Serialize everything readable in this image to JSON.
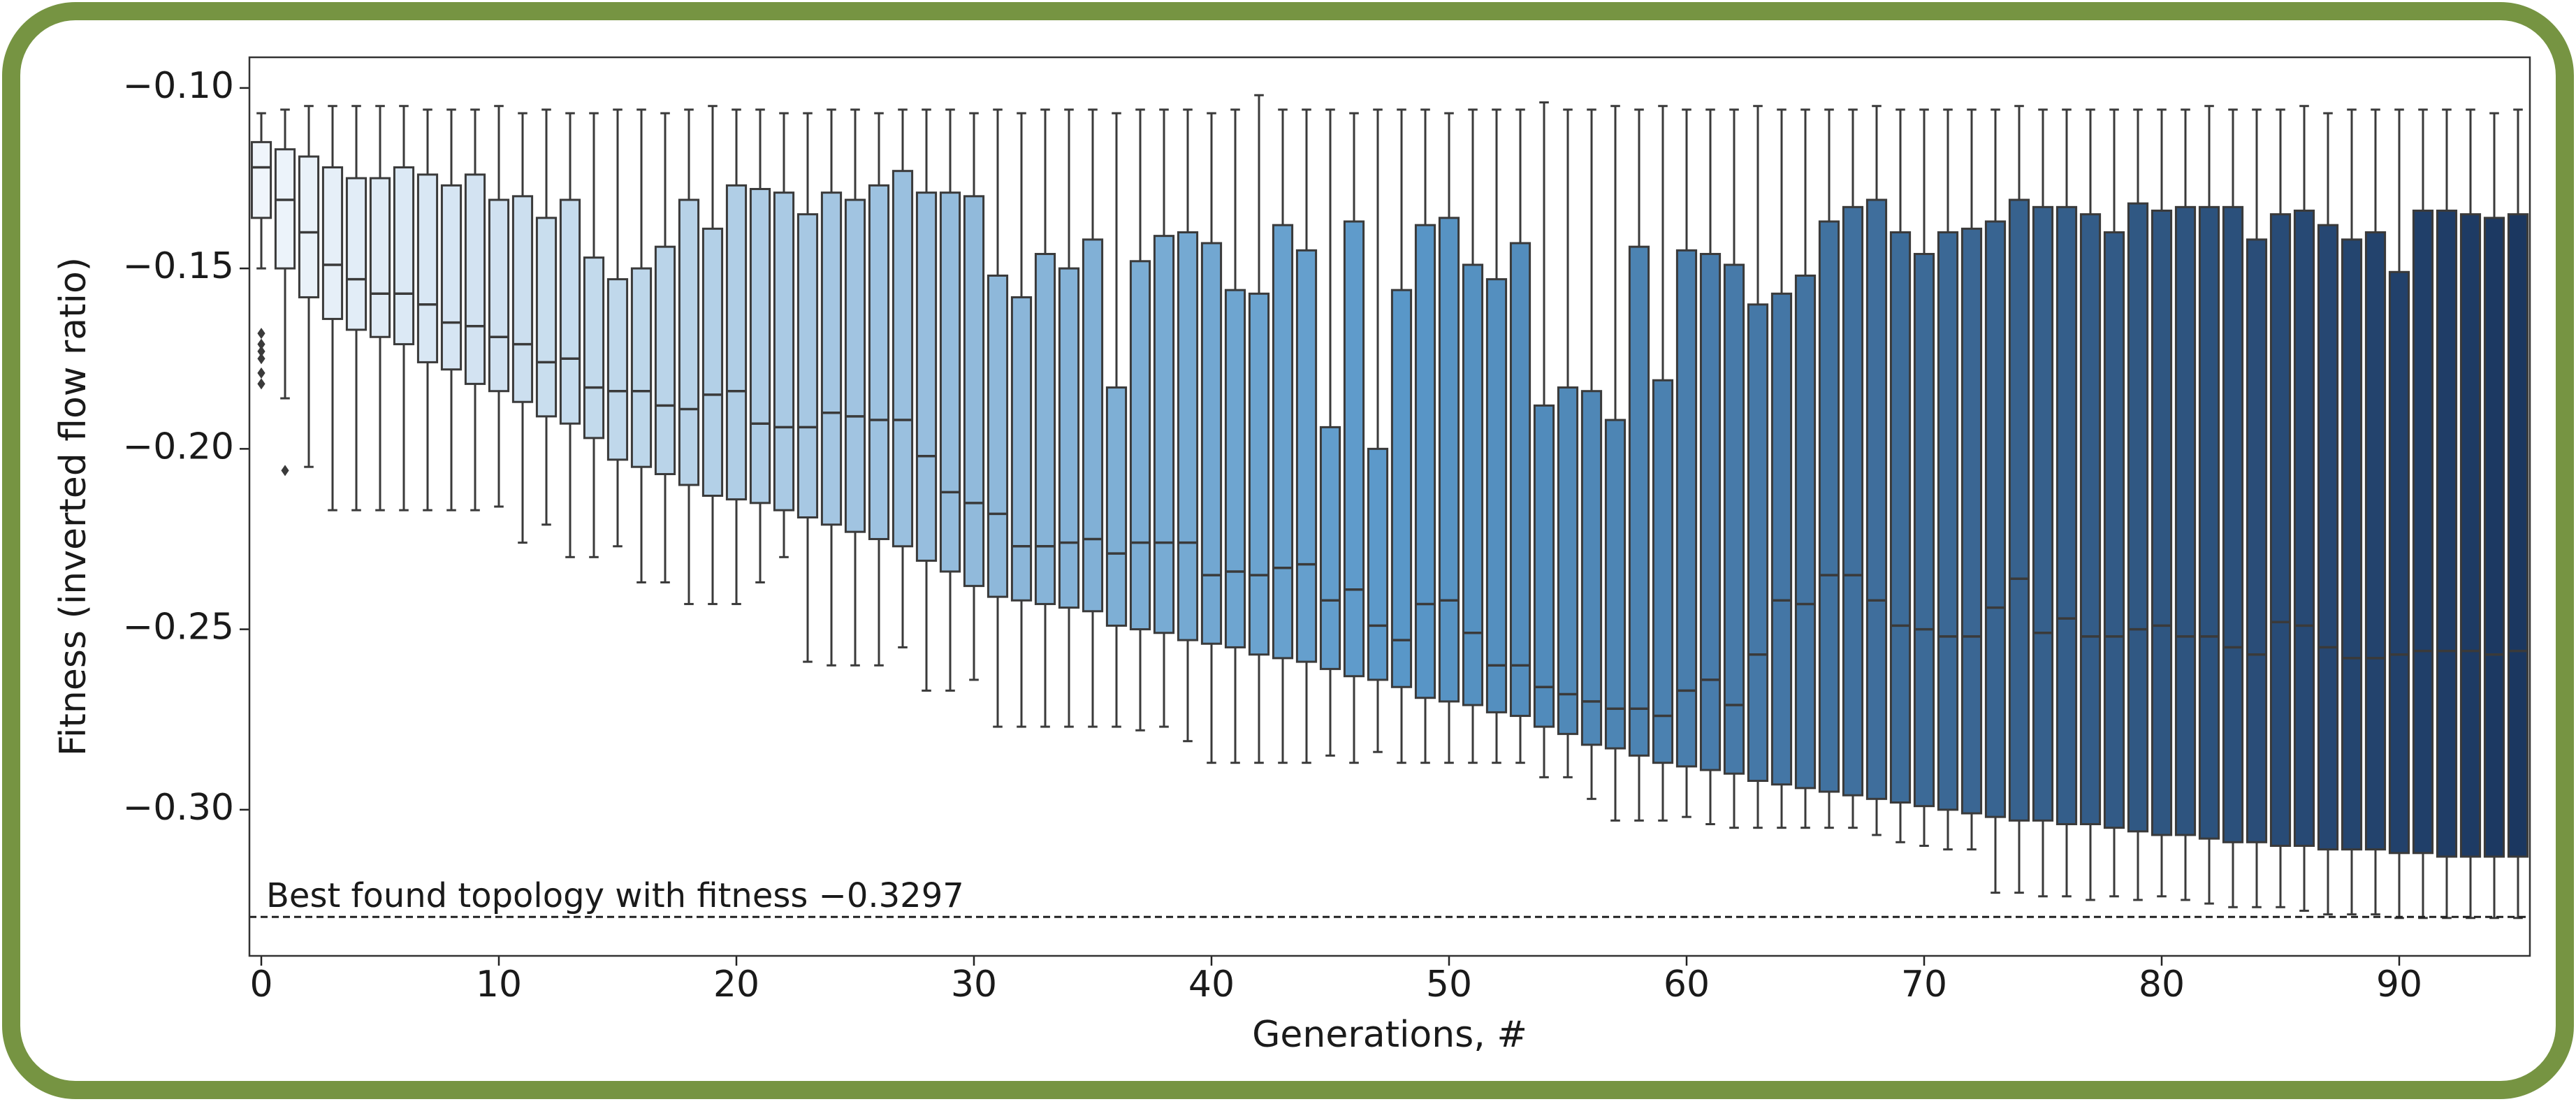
{
  "chart_data": {
    "type": "box",
    "x_label": "Generations, #",
    "y_label": "Fitness (inverted flow ratio)",
    "x": [
      0,
      1,
      2,
      3,
      4,
      5,
      6,
      7,
      8,
      9,
      10,
      11,
      12,
      13,
      14,
      15,
      16,
      17,
      18,
      19,
      20,
      21,
      22,
      23,
      24,
      25,
      26,
      27,
      28,
      29,
      30,
      31,
      32,
      33,
      34,
      35,
      36,
      37,
      38,
      39,
      40,
      41,
      42,
      43,
      44,
      45,
      46,
      47,
      48,
      49,
      50,
      51,
      52,
      53,
      54,
      55,
      56,
      57,
      58,
      59,
      60,
      61,
      62,
      63,
      64,
      65,
      66,
      67,
      68,
      69,
      70,
      71,
      72,
      73,
      74,
      75,
      76,
      77,
      78,
      79,
      80,
      81,
      82,
      83,
      84,
      85,
      86,
      87,
      88,
      89,
      90,
      91,
      92,
      93,
      94,
      95
    ],
    "whisker_high": [
      -0.107,
      -0.106,
      -0.105,
      -0.105,
      -0.105,
      -0.105,
      -0.105,
      -0.106,
      -0.106,
      -0.106,
      -0.105,
      -0.107,
      -0.106,
      -0.107,
      -0.107,
      -0.106,
      -0.106,
      -0.107,
      -0.106,
      -0.105,
      -0.106,
      -0.106,
      -0.107,
      -0.107,
      -0.106,
      -0.106,
      -0.107,
      -0.106,
      -0.106,
      -0.106,
      -0.107,
      -0.106,
      -0.107,
      -0.106,
      -0.106,
      -0.106,
      -0.107,
      -0.106,
      -0.106,
      -0.106,
      -0.107,
      -0.106,
      -0.102,
      -0.106,
      -0.106,
      -0.106,
      -0.107,
      -0.106,
      -0.106,
      -0.106,
      -0.107,
      -0.106,
      -0.106,
      -0.106,
      -0.104,
      -0.106,
      -0.106,
      -0.105,
      -0.106,
      -0.105,
      -0.106,
      -0.106,
      -0.106,
      -0.105,
      -0.106,
      -0.106,
      -0.106,
      -0.106,
      -0.105,
      -0.106,
      -0.106,
      -0.106,
      -0.106,
      -0.106,
      -0.105,
      -0.106,
      -0.106,
      -0.106,
      -0.106,
      -0.106,
      -0.106,
      -0.106,
      -0.105,
      -0.106,
      -0.106,
      -0.106,
      -0.105,
      -0.107,
      -0.106,
      -0.106,
      -0.106,
      -0.106,
      -0.106,
      -0.106,
      -0.107,
      -0.106
    ],
    "q3": [
      -0.115,
      -0.117,
      -0.119,
      -0.122,
      -0.125,
      -0.125,
      -0.122,
      -0.124,
      -0.127,
      -0.124,
      -0.131,
      -0.13,
      -0.136,
      -0.131,
      -0.147,
      -0.153,
      -0.15,
      -0.144,
      -0.131,
      -0.139,
      -0.127,
      -0.128,
      -0.129,
      -0.135,
      -0.129,
      -0.131,
      -0.127,
      -0.123,
      -0.129,
      -0.129,
      -0.13,
      -0.152,
      -0.158,
      -0.146,
      -0.15,
      -0.142,
      -0.183,
      -0.148,
      -0.141,
      -0.14,
      -0.143,
      -0.156,
      -0.157,
      -0.138,
      -0.145,
      -0.194,
      -0.137,
      -0.2,
      -0.156,
      -0.138,
      -0.136,
      -0.149,
      -0.153,
      -0.143,
      -0.188,
      -0.183,
      -0.184,
      -0.192,
      -0.144,
      -0.181,
      -0.145,
      -0.146,
      -0.149,
      -0.16,
      -0.157,
      -0.152,
      -0.137,
      -0.133,
      -0.131,
      -0.14,
      -0.146,
      -0.14,
      -0.139,
      -0.137,
      -0.131,
      -0.133,
      -0.133,
      -0.135,
      -0.14,
      -0.132,
      -0.134,
      -0.133,
      -0.133,
      -0.133,
      -0.142,
      -0.135,
      -0.134,
      -0.138,
      -0.142,
      -0.14,
      -0.151,
      -0.134,
      -0.134,
      -0.135,
      -0.136,
      -0.135
    ],
    "median": [
      -0.122,
      -0.131,
      -0.14,
      -0.149,
      -0.153,
      -0.157,
      -0.157,
      -0.16,
      -0.165,
      -0.166,
      -0.169,
      -0.171,
      -0.176,
      -0.175,
      -0.183,
      -0.184,
      -0.184,
      -0.188,
      -0.189,
      -0.185,
      -0.184,
      -0.193,
      -0.194,
      -0.194,
      -0.19,
      -0.191,
      -0.192,
      -0.192,
      -0.202,
      -0.212,
      -0.215,
      -0.218,
      -0.227,
      -0.227,
      -0.226,
      -0.225,
      -0.229,
      -0.226,
      -0.226,
      -0.226,
      -0.235,
      -0.234,
      -0.235,
      -0.233,
      -0.232,
      -0.242,
      -0.239,
      -0.249,
      -0.253,
      -0.243,
      -0.242,
      -0.251,
      -0.26,
      -0.26,
      -0.266,
      -0.268,
      -0.27,
      -0.272,
      -0.272,
      -0.274,
      -0.267,
      -0.264,
      -0.271,
      -0.257,
      -0.242,
      -0.243,
      -0.235,
      -0.235,
      -0.242,
      -0.249,
      -0.25,
      -0.252,
      -0.252,
      -0.244,
      -0.236,
      -0.251,
      -0.247,
      -0.252,
      -0.252,
      -0.25,
      -0.249,
      -0.252,
      -0.252,
      -0.255,
      -0.257,
      -0.248,
      -0.249,
      -0.255,
      -0.258,
      -0.258,
      -0.257,
      -0.256,
      -0.256,
      -0.256,
      -0.257,
      -0.256
    ],
    "q1": [
      -0.136,
      -0.15,
      -0.158,
      -0.164,
      -0.167,
      -0.169,
      -0.171,
      -0.176,
      -0.178,
      -0.182,
      -0.184,
      -0.187,
      -0.191,
      -0.193,
      -0.197,
      -0.203,
      -0.205,
      -0.207,
      -0.21,
      -0.213,
      -0.214,
      -0.215,
      -0.217,
      -0.219,
      -0.221,
      -0.223,
      -0.225,
      -0.227,
      -0.231,
      -0.234,
      -0.238,
      -0.241,
      -0.242,
      -0.243,
      -0.244,
      -0.245,
      -0.249,
      -0.25,
      -0.251,
      -0.253,
      -0.254,
      -0.255,
      -0.257,
      -0.258,
      -0.259,
      -0.261,
      -0.263,
      -0.264,
      -0.266,
      -0.269,
      -0.27,
      -0.271,
      -0.273,
      -0.274,
      -0.277,
      -0.279,
      -0.282,
      -0.283,
      -0.285,
      -0.287,
      -0.288,
      -0.289,
      -0.29,
      -0.292,
      -0.293,
      -0.294,
      -0.295,
      -0.296,
      -0.297,
      -0.298,
      -0.299,
      -0.3,
      -0.301,
      -0.302,
      -0.303,
      -0.303,
      -0.304,
      -0.304,
      -0.305,
      -0.306,
      -0.307,
      -0.307,
      -0.308,
      -0.309,
      -0.309,
      -0.31,
      -0.31,
      -0.311,
      -0.311,
      -0.311,
      -0.312,
      -0.312,
      -0.313,
      -0.313,
      -0.313,
      -0.313
    ],
    "whisker_low": [
      -0.15,
      -0.186,
      -0.205,
      -0.217,
      -0.217,
      -0.217,
      -0.217,
      -0.217,
      -0.217,
      -0.217,
      -0.216,
      -0.226,
      -0.221,
      -0.23,
      -0.23,
      -0.227,
      -0.237,
      -0.237,
      -0.243,
      -0.243,
      -0.243,
      -0.237,
      -0.23,
      -0.259,
      -0.26,
      -0.26,
      -0.26,
      -0.255,
      -0.267,
      -0.267,
      -0.264,
      -0.277,
      -0.277,
      -0.277,
      -0.277,
      -0.277,
      -0.277,
      -0.278,
      -0.277,
      -0.281,
      -0.287,
      -0.287,
      -0.287,
      -0.287,
      -0.287,
      -0.285,
      -0.287,
      -0.284,
      -0.287,
      -0.287,
      -0.287,
      -0.287,
      -0.287,
      -0.287,
      -0.291,
      -0.291,
      -0.297,
      -0.303,
      -0.303,
      -0.303,
      -0.302,
      -0.304,
      -0.305,
      -0.305,
      -0.305,
      -0.305,
      -0.305,
      -0.305,
      -0.307,
      -0.309,
      -0.31,
      -0.311,
      -0.311,
      -0.323,
      -0.323,
      -0.324,
      -0.324,
      -0.325,
      -0.324,
      -0.325,
      -0.324,
      -0.325,
      -0.326,
      -0.327,
      -0.327,
      -0.327,
      -0.328,
      -0.329,
      -0.329,
      -0.329,
      -0.33,
      -0.33,
      -0.33,
      -0.33,
      -0.33,
      -0.33
    ],
    "outliers": {
      "x": [
        0,
        0,
        0,
        0,
        0,
        0,
        1
      ],
      "y": [
        -0.168,
        -0.171,
        -0.173,
        -0.175,
        -0.179,
        -0.182,
        -0.206
      ]
    },
    "palette": [
      "#eff5fb",
      "#5a98c9",
      "#1b3760"
    ],
    "xlim": [
      -0.5,
      95.5
    ],
    "ylim": [
      -0.3405,
      -0.0915
    ],
    "xticks": [
      0,
      10,
      20,
      30,
      40,
      50,
      60,
      70,
      80,
      90
    ],
    "yticks": [
      {
        "value": -0.1,
        "label": "−0.10"
      },
      {
        "value": -0.15,
        "label": "−0.15"
      },
      {
        "value": -0.2,
        "label": "−0.20"
      },
      {
        "value": -0.25,
        "label": "−0.25"
      },
      {
        "value": -0.3,
        "label": "−0.30"
      }
    ],
    "reference_line": {
      "value": -0.3297,
      "label": "Best found topology with fitness −0.3297"
    },
    "frame_color": "#769442"
  }
}
